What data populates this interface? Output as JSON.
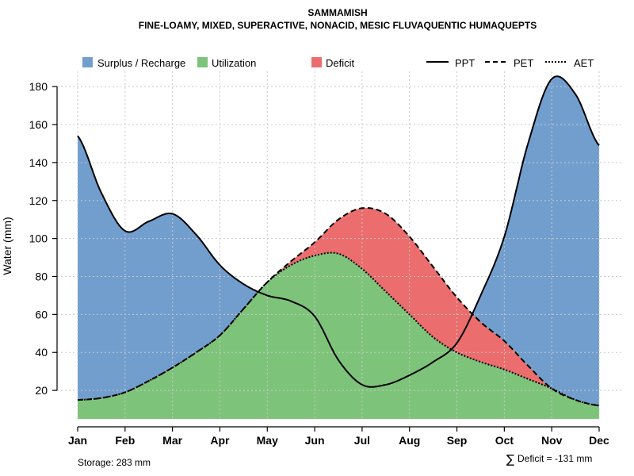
{
  "chart_data": {
    "type": "area",
    "title": "SAMMAMISH",
    "subtitle": "FINE-LOAMY, MIXED, SUPERACTIVE, NONACID, MESIC FLUVAQUENTIC HUMAQUEPTS",
    "xlabel": "",
    "ylabel": "Water (mm)",
    "ylim": [
      5,
      188
    ],
    "yticks": [
      20,
      40,
      60,
      80,
      100,
      120,
      140,
      160,
      180
    ],
    "categories": [
      "Jan",
      "Feb",
      "Mar",
      "Apr",
      "May",
      "Jun",
      "Jul",
      "Aug",
      "Sep",
      "Oct",
      "Nov",
      "Dec"
    ],
    "grid": true,
    "legend_position": "top",
    "series": [
      {
        "name": "PPT",
        "style": "solid",
        "x": [
          1,
          1.5,
          2,
          2.5,
          3,
          3.5,
          4,
          4.5,
          5,
          5.5,
          6,
          6.5,
          7,
          7.5,
          8,
          8.5,
          9,
          9.5,
          10,
          10.5,
          11,
          11.5,
          12
        ],
        "values": [
          154,
          124,
          104,
          109,
          113,
          102,
          86,
          76,
          70,
          67,
          59,
          36,
          23,
          23,
          28,
          35,
          45,
          70,
          101,
          150,
          184,
          176,
          149
        ]
      },
      {
        "name": "PET",
        "style": "dashed",
        "x": [
          1,
          1.5,
          2,
          2.5,
          3,
          3.5,
          4,
          4.5,
          5,
          5.5,
          6,
          6.5,
          7,
          7.5,
          8,
          8.5,
          9,
          9.5,
          10,
          10.5,
          11,
          11.5,
          12
        ],
        "values": [
          15,
          16,
          19,
          25,
          32,
          40,
          49,
          63,
          77,
          88,
          98,
          110,
          116,
          113,
          101,
          85,
          69,
          56,
          46,
          33,
          21,
          15,
          12
        ]
      },
      {
        "name": "AET",
        "style": "dotted",
        "x": [
          1,
          1.5,
          2,
          2.5,
          3,
          3.5,
          4,
          4.5,
          5,
          5.5,
          6,
          6.5,
          7,
          7.5,
          8,
          8.5,
          9,
          9.5,
          10,
          10.5,
          11,
          11.5,
          12
        ],
        "values": [
          15,
          16,
          19,
          25,
          32,
          40,
          49,
          63,
          77,
          86,
          91,
          92,
          84,
          72,
          60,
          48,
          40,
          35,
          31,
          26,
          21,
          15,
          12
        ]
      }
    ],
    "fills": [
      {
        "name": "Surplus / Recharge",
        "color": "#729ECE",
        "between": [
          "PPT",
          "PET"
        ],
        "where": "PPT > PET"
      },
      {
        "name": "Utilization",
        "color": "#7DC47A",
        "between": [
          "AET",
          "baseline"
        ],
        "where": "always"
      },
      {
        "name": "Deficit",
        "color": "#EB6D6D",
        "between": [
          "PET",
          "AET"
        ],
        "where": "PET > AET"
      }
    ],
    "legend": {
      "fills": [
        "Surplus / Recharge",
        "Utilization",
        "Deficit"
      ],
      "lines": [
        "PPT",
        "PET",
        "AET"
      ]
    },
    "annotations": {
      "storage": "Storage: 283 mm",
      "deficit_symbol": "∑",
      "deficit": "Deficit = -131 mm"
    }
  }
}
